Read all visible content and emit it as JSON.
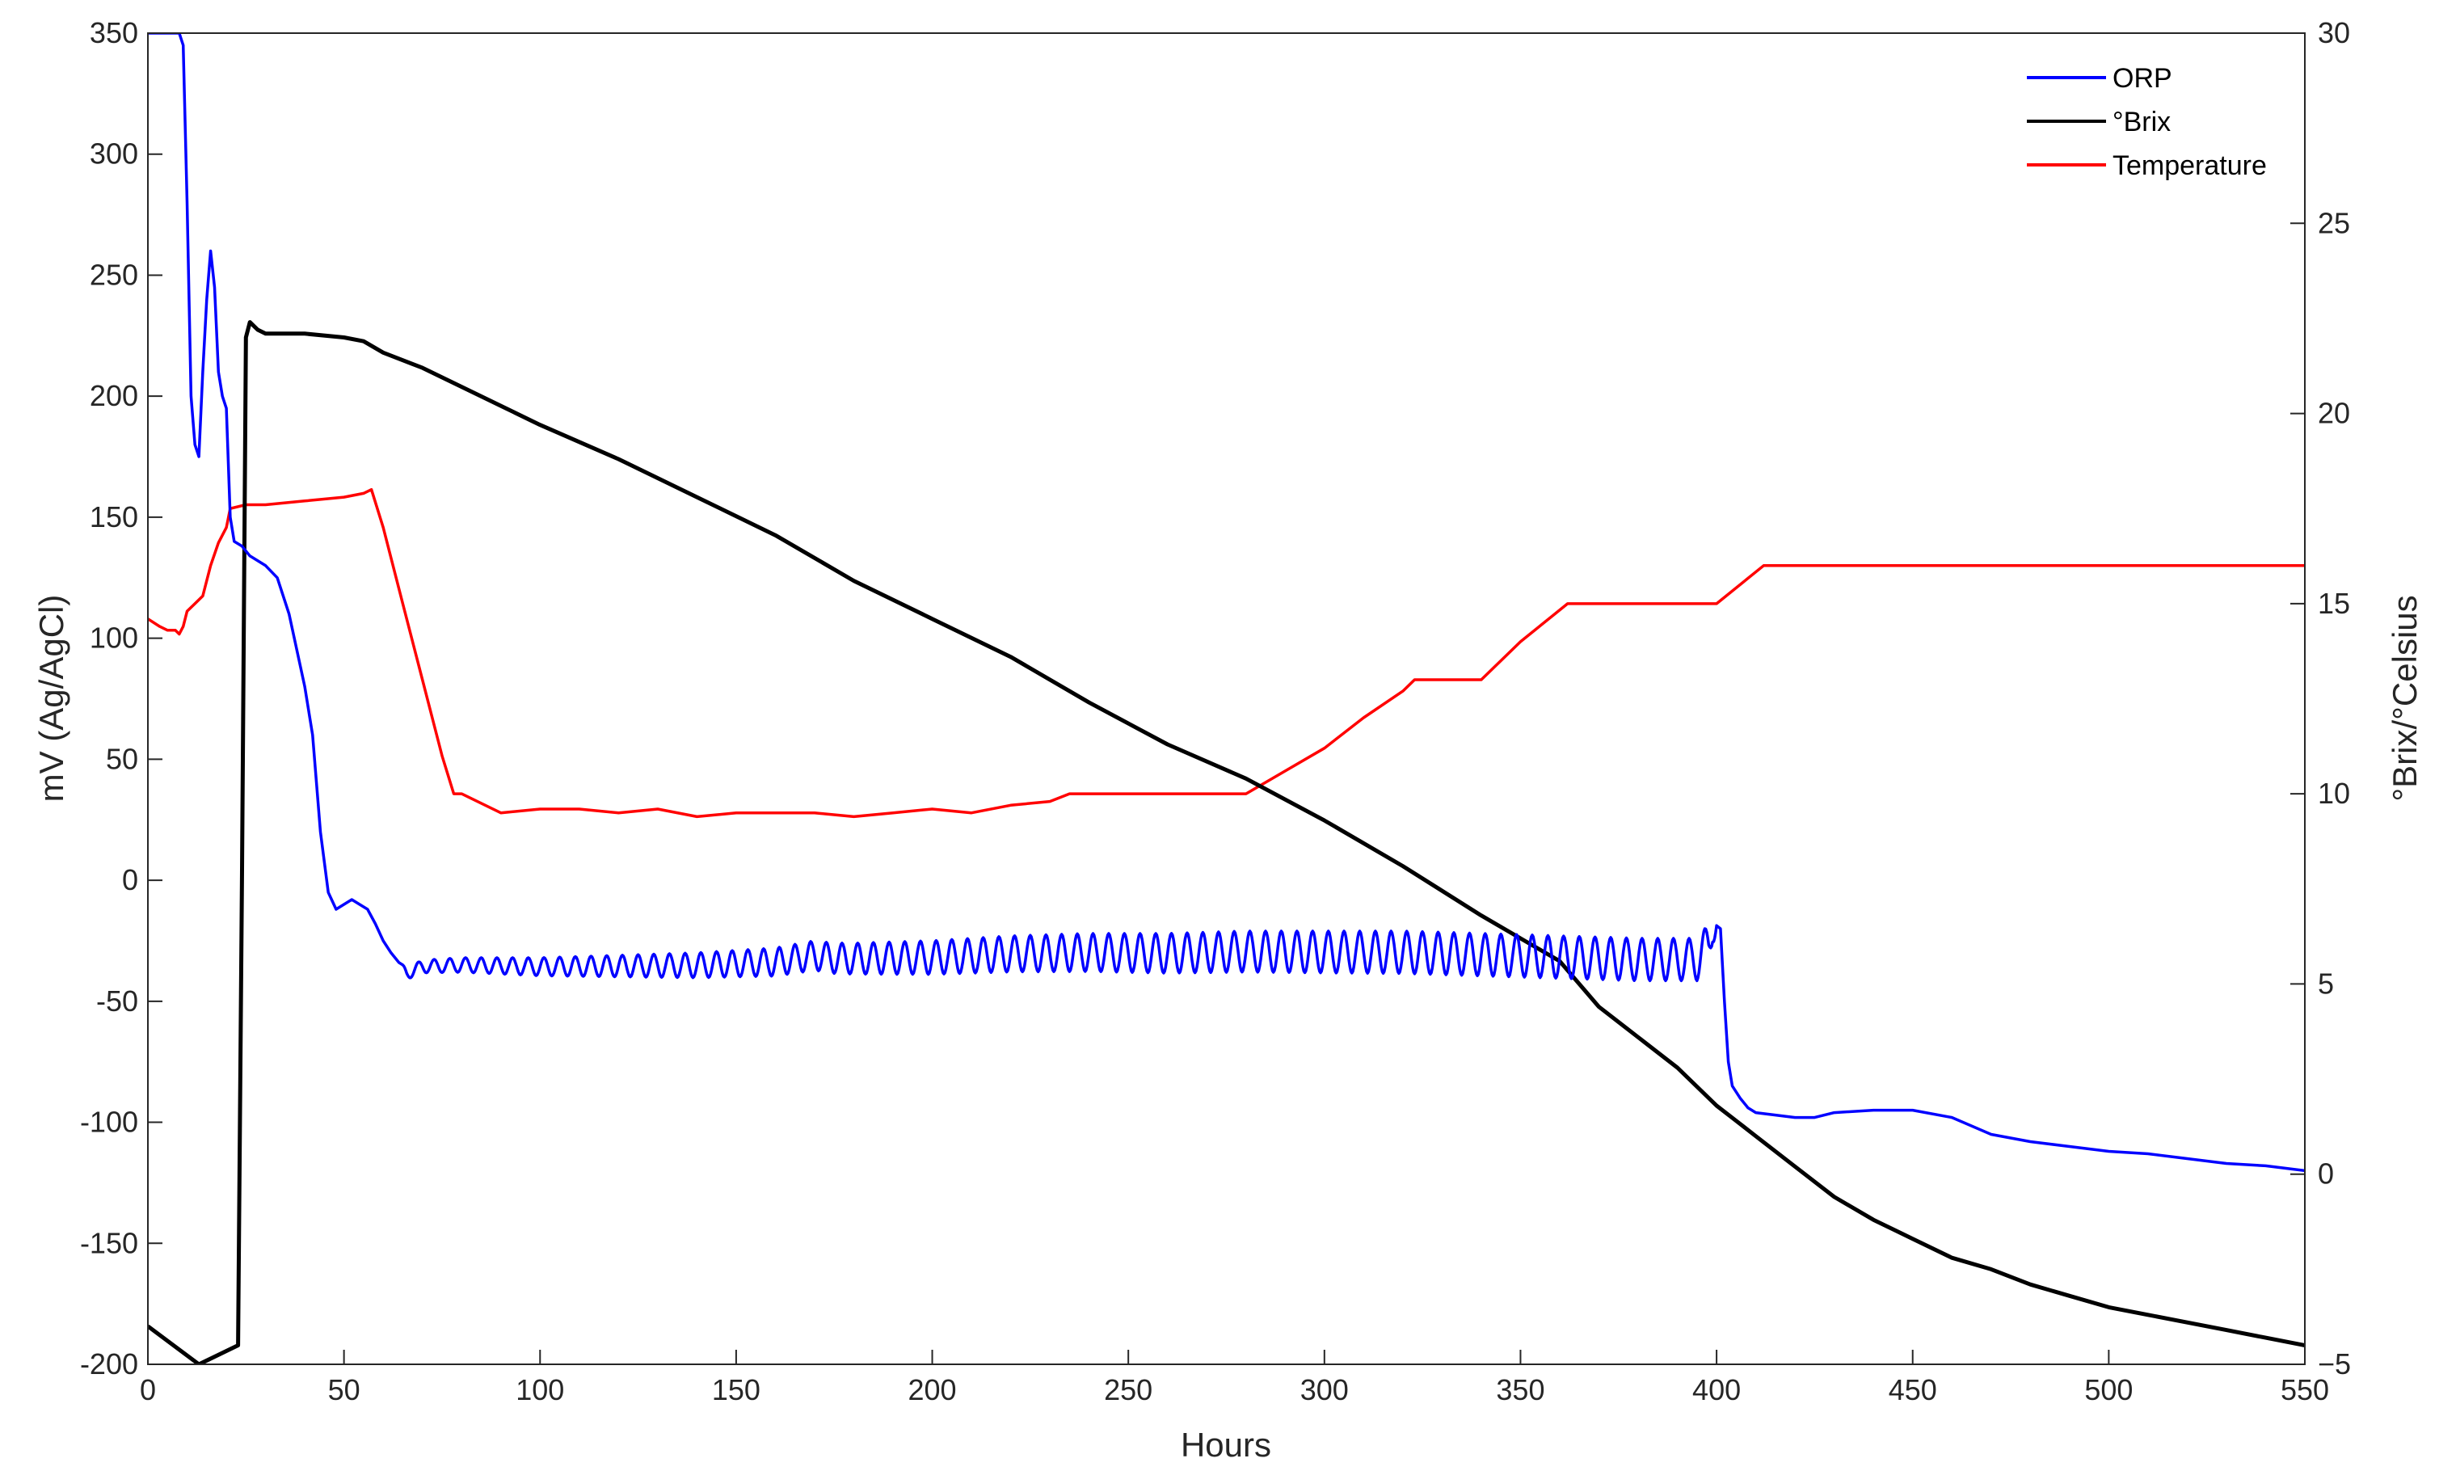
{
  "chart_data": {
    "type": "line",
    "title": "",
    "xlabel": "Hours",
    "ylabel_left": "mV (Ag/AgCl)",
    "ylabel_right": "°Brix/°Celsius",
    "xlim": [
      0,
      550
    ],
    "ylim_left": [
      -200,
      350
    ],
    "ylim_right": [
      -5,
      30
    ],
    "x_ticks": [
      0,
      50,
      100,
      150,
      200,
      250,
      300,
      350,
      400,
      450,
      500,
      550
    ],
    "y_left_ticks": [
      -200,
      -150,
      -100,
      -50,
      0,
      50,
      100,
      150,
      200,
      250,
      300,
      350
    ],
    "y_right_ticks": [
      -5,
      0,
      5,
      10,
      15,
      20,
      25,
      30
    ],
    "y_right_tick_labels": [
      "−5",
      "0",
      "5",
      "10",
      "15",
      "20",
      "25",
      "30"
    ],
    "grid": false,
    "legend_position": "top-right",
    "series": [
      {
        "name": "ORP",
        "axis": "left",
        "color": "#0000ff",
        "noise": {
          "start": 65,
          "end": 400,
          "amplitude": 14,
          "period": 4
        },
        "x": [
          0,
          6,
          8,
          9,
          10,
          11,
          12,
          13,
          14,
          15,
          16,
          17,
          18,
          19,
          20,
          21,
          22,
          24,
          26,
          28,
          30,
          33,
          36,
          38,
          40,
          42,
          44,
          46,
          48,
          50,
          52,
          54,
          56,
          58,
          60,
          62,
          64,
          66,
          70,
          80,
          100,
          120,
          140,
          160,
          170,
          175,
          180,
          200,
          220,
          240,
          260,
          280,
          300,
          320,
          340,
          360,
          380,
          395,
          398,
          399,
          400,
          401,
          402,
          403,
          404,
          406,
          408,
          410,
          415,
          420,
          425,
          430,
          440,
          450,
          460,
          470,
          480,
          490,
          500,
          510,
          520,
          530,
          540,
          550
        ],
        "y": [
          350,
          350,
          350,
          345,
          280,
          200,
          180,
          175,
          210,
          240,
          260,
          245,
          210,
          200,
          195,
          150,
          140,
          138,
          134,
          132,
          130,
          125,
          110,
          95,
          80,
          60,
          20,
          -5,
          -12,
          -10,
          -8,
          -10,
          -12,
          -18,
          -25,
          -30,
          -34,
          -36,
          -33,
          -32,
          -32,
          -31,
          -30,
          -28,
          -25,
          -26,
          -26,
          -25,
          -23,
          -22,
          -22,
          -21,
          -21,
          -21,
          -22,
          -23,
          -24,
          -24,
          -18,
          -8,
          -10,
          -20,
          -50,
          -75,
          -85,
          -90,
          -94,
          -96,
          -97,
          -98,
          -98,
          -96,
          -95,
          -95,
          -98,
          -105,
          -108,
          -110,
          -112,
          -113,
          -115,
          -117,
          -118,
          -120
        ]
      },
      {
        "name": "°Brix",
        "axis": "right",
        "color": "#000000",
        "x": [
          0,
          13,
          23,
          24,
          25,
          26,
          28,
          30,
          40,
          50,
          55,
          60,
          70,
          80,
          100,
          120,
          140,
          160,
          180,
          200,
          220,
          240,
          260,
          280,
          300,
          320,
          340,
          350,
          360,
          370,
          380,
          390,
          400,
          405,
          410,
          420,
          430,
          440,
          450,
          460,
          470,
          480,
          490,
          500,
          510,
          520,
          530,
          540,
          550
        ],
        "y": [
          -4.0,
          -5.0,
          -4.5,
          8.0,
          22.0,
          22.4,
          22.2,
          22.1,
          22.1,
          22.0,
          21.9,
          21.6,
          21.2,
          20.7,
          19.7,
          18.8,
          17.8,
          16.8,
          15.6,
          14.6,
          13.6,
          12.4,
          11.3,
          10.4,
          9.3,
          8.1,
          6.8,
          6.2,
          5.6,
          4.4,
          3.6,
          2.8,
          1.8,
          1.4,
          1.0,
          0.2,
          -0.6,
          -1.2,
          -1.7,
          -2.2,
          -2.5,
          -2.9,
          -3.2,
          -3.5,
          -3.7,
          -3.9,
          -4.1,
          -4.3,
          -4.5
        ]
      },
      {
        "name": "Temperature",
        "axis": "right",
        "color": "#ff0000",
        "x": [
          0,
          3,
          5,
          7,
          8,
          9,
          10,
          12,
          14,
          16,
          18,
          20,
          21,
          25,
          30,
          40,
          50,
          55,
          57,
          60,
          65,
          70,
          75,
          78,
          80,
          90,
          100,
          110,
          120,
          130,
          140,
          150,
          160,
          170,
          180,
          190,
          200,
          210,
          220,
          230,
          235,
          240,
          260,
          280,
          290,
          300,
          310,
          320,
          323,
          328,
          340,
          350,
          362,
          365,
          380,
          400,
          412,
          415,
          420,
          450,
          500,
          550
        ],
        "y": [
          14.6,
          14.4,
          14.3,
          14.3,
          14.2,
          14.4,
          14.8,
          15.0,
          15.2,
          16.0,
          16.6,
          17.0,
          17.5,
          17.6,
          17.6,
          17.7,
          17.8,
          17.9,
          18.0,
          17.0,
          15.0,
          13.0,
          11.0,
          10.0,
          10.0,
          9.5,
          9.6,
          9.6,
          9.5,
          9.6,
          9.4,
          9.5,
          9.5,
          9.5,
          9.4,
          9.5,
          9.6,
          9.5,
          9.7,
          9.8,
          10.0,
          10.0,
          10.0,
          10.0,
          10.6,
          11.2,
          12.0,
          12.7,
          13.0,
          13.0,
          13.0,
          14.0,
          15.0,
          15.0,
          15.0,
          15.0,
          16.0,
          16.0,
          16.0,
          16.0,
          16.0,
          16.0
        ]
      }
    ]
  }
}
